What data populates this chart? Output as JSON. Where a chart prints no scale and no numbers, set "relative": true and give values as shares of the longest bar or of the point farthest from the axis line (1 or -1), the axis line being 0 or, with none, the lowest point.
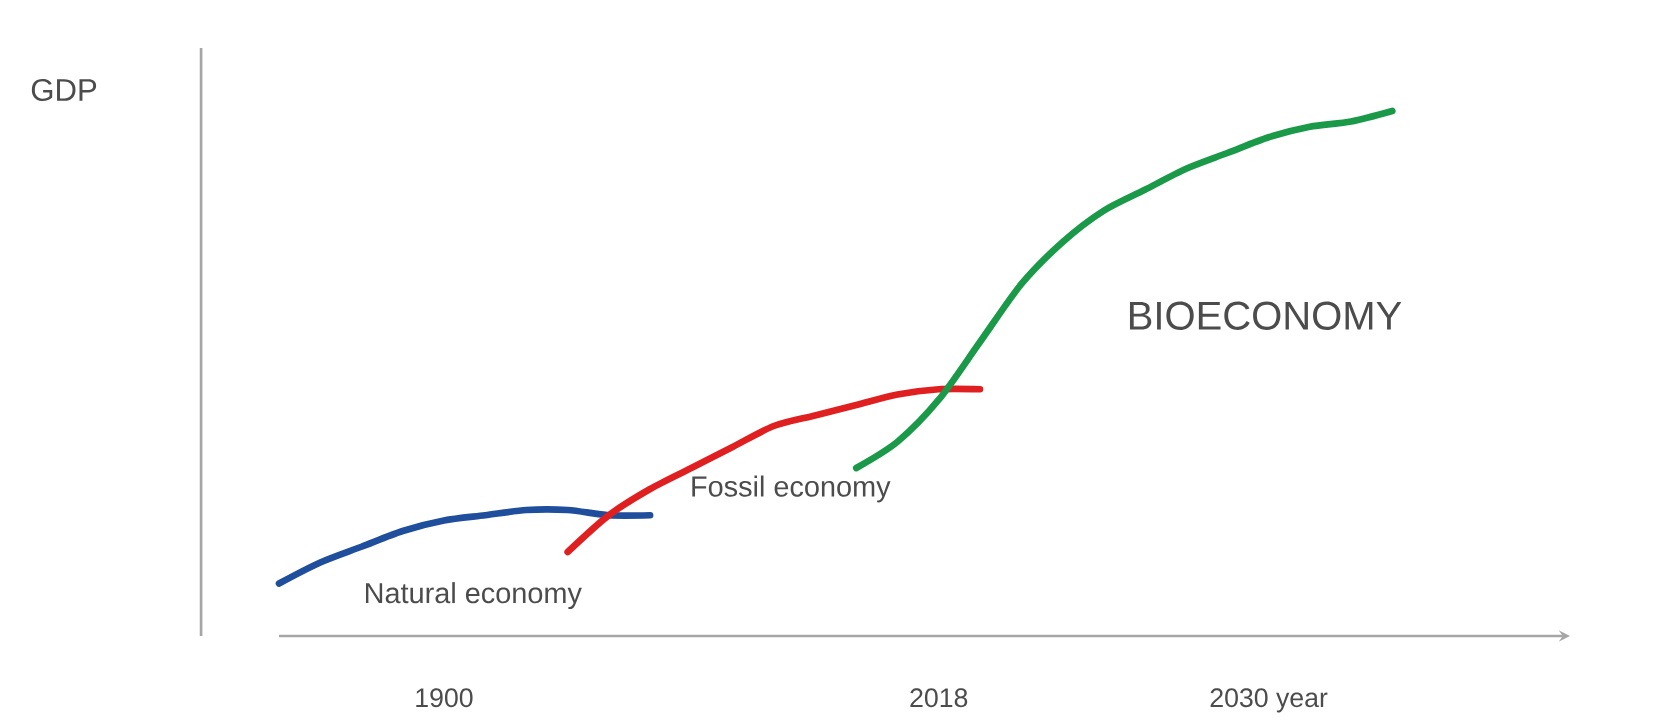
{
  "chart_data": {
    "type": "line",
    "relative": true,
    "annotations": [
      "GDP"
    ],
    "categories": [
      null,
      null,
      null,
      null,
      "1900",
      null,
      null,
      null,
      null,
      null,
      null,
      null,
      null,
      null,
      null,
      null,
      "2018",
      null,
      null,
      null,
      null,
      null,
      null,
      null,
      "2030 year",
      null,
      null,
      null
    ],
    "series": [
      {
        "name": "Natural economy",
        "color": "#1f4e9c",
        "values": [
          0.1,
          0.14,
          0.17,
          0.2,
          0.22,
          0.23,
          0.24,
          0.24,
          0.23,
          0.23,
          null,
          null,
          null,
          null,
          null,
          null,
          null,
          null,
          null,
          null,
          null,
          null,
          null,
          null,
          null,
          null,
          null,
          null
        ]
      },
      {
        "name": "Fossil economy",
        "color": "#e02020",
        "values": [
          null,
          null,
          null,
          null,
          null,
          null,
          null,
          0.16,
          0.23,
          0.28,
          0.32,
          0.36,
          0.4,
          0.42,
          0.44,
          0.46,
          0.47,
          0.47,
          null,
          null,
          null,
          null,
          null,
          null,
          null,
          null,
          null,
          null
        ]
      },
      {
        "name": "BIOECONOMY",
        "color": "#1a9a48",
        "values": [
          null,
          null,
          null,
          null,
          null,
          null,
          null,
          null,
          null,
          null,
          null,
          null,
          null,
          null,
          0.32,
          0.37,
          0.45,
          0.56,
          0.67,
          0.75,
          0.81,
          0.85,
          0.89,
          0.92,
          0.95,
          0.97,
          0.98,
          1.0
        ]
      }
    ],
    "grid": false,
    "legend": false,
    "marker": "none",
    "line_style": "solid"
  }
}
